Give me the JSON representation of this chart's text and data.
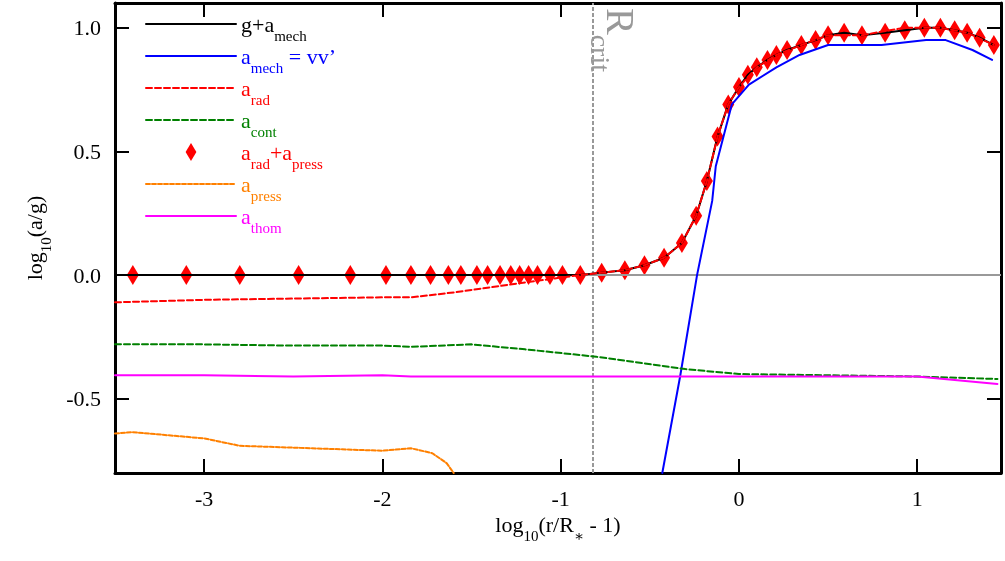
{
  "chart_data": {
    "type": "line",
    "xlabel": "log$_{10}$(r/R$_{∗}$ - 1)",
    "ylabel": "log$_{10}$(a/g)",
    "xlim": [
      -3.5,
      1.47
    ],
    "xticks": [
      -3,
      -2,
      -1,
      0,
      1
    ],
    "ylim": [
      -0.8,
      1.1
    ],
    "yticks": [
      {
        "value": -0.5,
        "label": "-0.5"
      },
      {
        "value": 0,
        "label": "0.0"
      },
      {
        "value": 0.5,
        "label": "0.5"
      },
      {
        "value": 1,
        "label": "1.0"
      }
    ],
    "grid": false,
    "legend": "top left",
    "ref_lines": [
      {
        "axis": "y",
        "value": 0,
        "color": "#999999",
        "line_style": "solid"
      },
      {
        "axis": "x",
        "value": -0.82,
        "label": "R$_{crit}$",
        "color": "#999999",
        "line_style": "dotted"
      }
    ],
    "series": [
      {
        "name": "g+a$_{mech}$",
        "color": "#000000",
        "line_style": "solid",
        "x": [
          -3.5,
          -1.41,
          -1.06,
          -0.89,
          -0.77,
          -0.64,
          -0.53,
          -0.42,
          -0.32,
          -0.24,
          -0.18,
          -0.12,
          -0.06,
          0,
          0.05,
          0.1,
          0.16,
          0.21,
          0.27,
          0.35,
          0.43,
          0.5,
          0.59,
          0.69,
          0.82,
          0.93,
          1.04,
          1.13,
          1.21,
          1.28,
          1.35,
          1.43
        ],
        "values": [
          0,
          0,
          0,
          0,
          0.01,
          0.02,
          0.04,
          0.07,
          0.13,
          0.24,
          0.38,
          0.56,
          0.69,
          0.76,
          0.81,
          0.84,
          0.87,
          0.89,
          0.91,
          0.93,
          0.95,
          0.97,
          0.98,
          0.97,
          0.98,
          0.99,
          1,
          1,
          0.99,
          0.98,
          0.96,
          0.93
        ]
      },
      {
        "name": "a$_{mech}$ = vv’",
        "color": "#0000ff",
        "line_style": "solid",
        "x": [
          -0.43,
          -0.33,
          -0.235,
          -0.15,
          -0.13,
          -0.04,
          0.056,
          0.21,
          0.34,
          0.5,
          0.8,
          1.05,
          1.16,
          1.31,
          1.42
        ],
        "values": [
          -0.8,
          -0.41,
          0,
          0.3,
          0.44,
          0.69,
          0.77,
          0.84,
          0.89,
          0.93,
          0.93,
          0.95,
          0.95,
          0.91,
          0.87
        ]
      },
      {
        "name": "a$_{rad}$",
        "color": "#ff0000",
        "line_style": "dashed",
        "x": [
          -3.5,
          -3,
          -2.5,
          -2,
          -1.84,
          -1.6,
          -1.4,
          -1.2,
          -1,
          -0.89,
          -0.77,
          -0.64,
          -0.53,
          -0.42,
          -0.32,
          -0.24,
          -0.18,
          -0.12,
          -0.06,
          0,
          0.1,
          0.21,
          0.35,
          0.5,
          0.69,
          0.93,
          1.13,
          1.28,
          1.43
        ],
        "values": [
          -0.11,
          -0.1,
          -0.095,
          -0.09,
          -0.09,
          -0.07,
          -0.05,
          -0.03,
          -0.01,
          0,
          0.01,
          0.02,
          0.04,
          0.07,
          0.13,
          0.24,
          0.38,
          0.56,
          0.69,
          0.76,
          0.84,
          0.89,
          0.93,
          0.97,
          0.97,
          1,
          1,
          0.98,
          0.93
        ]
      },
      {
        "name": "a$_{cont}$",
        "color": "#008000",
        "line_style": "dashed",
        "x": [
          -3.5,
          -3,
          -2.5,
          -2,
          -1.84,
          -1.5,
          -1.2,
          -0.8,
          -0.3,
          0,
          0.5,
          1,
          1.45
        ],
        "values": [
          -0.28,
          -0.28,
          -0.285,
          -0.285,
          -0.29,
          -0.28,
          -0.3,
          -0.33,
          -0.38,
          -0.4,
          -0.405,
          -0.41,
          -0.42
        ]
      },
      {
        "name": "a$_{rad}$+a$_{press}$",
        "type": "scatter",
        "marker": "diamond",
        "color": "#ff0000",
        "x": [
          -3.4,
          -3.1,
          -2.8,
          -2.47,
          -2.18,
          -1.98,
          -1.84,
          -1.73,
          -1.63,
          -1.56,
          -1.47,
          -1.41,
          -1.34,
          -1.28,
          -1.23,
          -1.18,
          -1.13,
          -1.06,
          -0.99,
          -0.89,
          -0.77,
          -0.64,
          -0.53,
          -0.42,
          -0.32,
          -0.24,
          -0.18,
          -0.12,
          -0.06,
          0,
          0.05,
          0.1,
          0.16,
          0.21,
          0.27,
          0.35,
          0.43,
          0.5,
          0.59,
          0.69,
          0.82,
          0.93,
          1.04,
          1.13,
          1.21,
          1.28,
          1.35,
          1.43
        ],
        "values": [
          0,
          0,
          0,
          0,
          0,
          0,
          0,
          0,
          0,
          0,
          0,
          0,
          0,
          0,
          0,
          0,
          0,
          0,
          0,
          0,
          0.01,
          0.02,
          0.04,
          0.07,
          0.13,
          0.24,
          0.38,
          0.56,
          0.69,
          0.76,
          0.81,
          0.84,
          0.87,
          0.89,
          0.91,
          0.93,
          0.95,
          0.97,
          0.98,
          0.97,
          0.98,
          0.99,
          1,
          1,
          0.99,
          0.98,
          0.96,
          0.93
        ]
      },
      {
        "name": "a$_{press}$",
        "color": "#ff8000",
        "line_style": "dotted",
        "x": [
          -3.5,
          -3.4,
          -3,
          -2.8,
          -2.4,
          -2,
          -1.84,
          -1.72,
          -1.64,
          -1.6
        ],
        "values": [
          -0.64,
          -0.635,
          -0.66,
          -0.69,
          -0.7,
          -0.71,
          -0.7,
          -0.72,
          -0.76,
          -0.8
        ]
      },
      {
        "name": "a$_{thom}$",
        "color": "#ff00ff",
        "line_style": "solid",
        "x": [
          -3.5,
          -3,
          -2.5,
          -2,
          -1.84,
          -1,
          0,
          1,
          1.45
        ],
        "values": [
          -0.405,
          -0.405,
          -0.41,
          -0.405,
          -0.41,
          -0.41,
          -0.41,
          -0.41,
          -0.44
        ]
      }
    ]
  }
}
